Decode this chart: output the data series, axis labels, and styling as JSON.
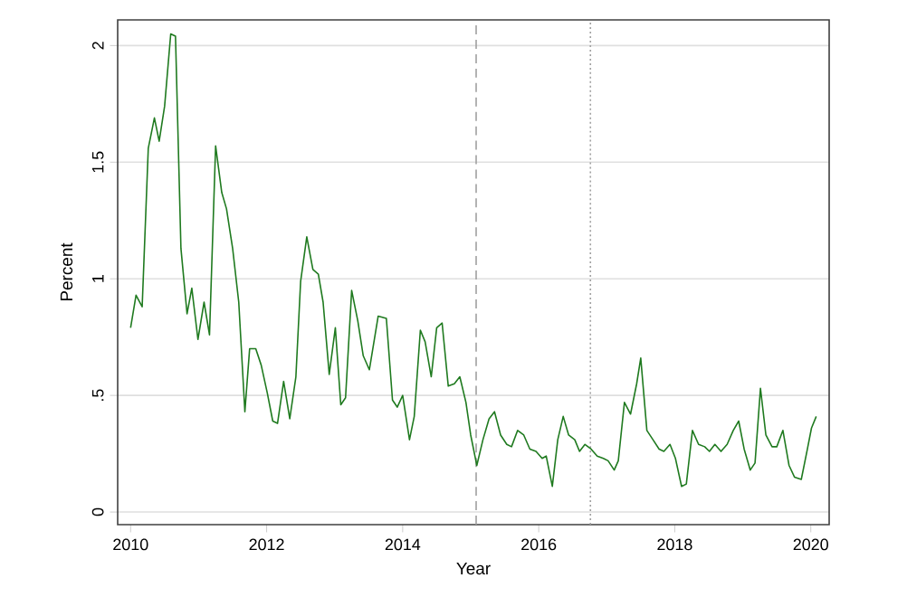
{
  "chart_data": {
    "type": "line",
    "xlabel": "Year",
    "ylabel": "Percent",
    "xlim": [
      2009.81,
      2020.27
    ],
    "ylim": [
      -0.054,
      2.11
    ],
    "xticks": [
      2010,
      2012,
      2014,
      2016,
      2018,
      2020
    ],
    "yticks": [
      0,
      {
        "value": 0.5,
        "label": ".5"
      },
      1,
      1.5,
      2
    ],
    "grid": "y",
    "marker": "none",
    "line_style": "solid",
    "ref_lines": [
      {
        "axis": "x",
        "value": 2015.08,
        "color": "#a0a0a0",
        "line_style": "dashed"
      },
      {
        "axis": "x",
        "value": 2016.76,
        "color": "#a0a0a0",
        "line_style": "dotted"
      }
    ],
    "series": [
      {
        "color": "#1f7a1f",
        "x": [
          2010.0,
          2010.08,
          2010.17,
          2010.26,
          2010.35,
          2010.42,
          2010.5,
          2010.59,
          2010.66,
          2010.74,
          2010.83,
          2010.9,
          2010.99,
          2011.08,
          2011.16,
          2011.25,
          2011.34,
          2011.41,
          2011.5,
          2011.59,
          2011.68,
          2011.75,
          2011.84,
          2011.92,
          2012.01,
          2012.09,
          2012.16,
          2012.25,
          2012.34,
          2012.43,
          2012.5,
          2012.59,
          2012.68,
          2012.76,
          2012.83,
          2012.92,
          2013.01,
          2013.09,
          2013.16,
          2013.25,
          2013.34,
          2013.42,
          2013.51,
          2013.64,
          2013.76,
          2013.85,
          2013.92,
          2014.0,
          2014.1,
          2014.17,
          2014.26,
          2014.33,
          2014.42,
          2014.5,
          2014.58,
          2014.67,
          2014.76,
          2014.84,
          2014.93,
          2015.0,
          2015.09,
          2015.18,
          2015.27,
          2015.35,
          2015.44,
          2015.53,
          2015.6,
          2015.69,
          2015.78,
          2015.87,
          2015.96,
          2016.05,
          2016.11,
          2016.2,
          2016.28,
          2016.36,
          2016.44,
          2016.53,
          2016.6,
          2016.68,
          2016.77,
          2016.86,
          2016.95,
          2017.02,
          2017.11,
          2017.17,
          2017.26,
          2017.35,
          2017.44,
          2017.5,
          2017.59,
          2017.68,
          2017.77,
          2017.84,
          2017.93,
          2018.01,
          2018.1,
          2018.17,
          2018.26,
          2018.35,
          2018.44,
          2018.51,
          2018.59,
          2018.68,
          2018.77,
          2018.86,
          2018.94,
          2019.02,
          2019.11,
          2019.18,
          2019.26,
          2019.34,
          2019.43,
          2019.5,
          2019.59,
          2019.68,
          2019.76,
          2019.86,
          2019.95,
          2020.01,
          2020.08
        ],
        "values": [
          0.79,
          0.93,
          0.88,
          1.56,
          1.69,
          1.59,
          1.74,
          2.05,
          2.04,
          1.13,
          0.85,
          0.96,
          0.74,
          0.9,
          0.76,
          1.57,
          1.37,
          1.3,
          1.13,
          0.9,
          0.43,
          0.7,
          0.7,
          0.63,
          0.51,
          0.39,
          0.38,
          0.56,
          0.4,
          0.58,
          0.99,
          1.18,
          1.04,
          1.02,
          0.9,
          0.59,
          0.79,
          0.46,
          0.49,
          0.95,
          0.82,
          0.67,
          0.61,
          0.84,
          0.83,
          0.48,
          0.45,
          0.5,
          0.31,
          0.41,
          0.78,
          0.73,
          0.58,
          0.79,
          0.81,
          0.54,
          0.55,
          0.58,
          0.47,
          0.33,
          0.2,
          0.31,
          0.4,
          0.43,
          0.33,
          0.29,
          0.28,
          0.35,
          0.33,
          0.27,
          0.26,
          0.23,
          0.24,
          0.11,
          0.31,
          0.41,
          0.33,
          0.31,
          0.26,
          0.29,
          0.27,
          0.24,
          0.23,
          0.22,
          0.18,
          0.22,
          0.47,
          0.42,
          0.55,
          0.66,
          0.35,
          0.31,
          0.27,
          0.26,
          0.29,
          0.23,
          0.11,
          0.12,
          0.35,
          0.29,
          0.28,
          0.26,
          0.29,
          0.26,
          0.29,
          0.35,
          0.39,
          0.27,
          0.18,
          0.21,
          0.53,
          0.33,
          0.28,
          0.28,
          0.35,
          0.2,
          0.15,
          0.14,
          0.27,
          0.36,
          0.41
        ]
      }
    ]
  }
}
